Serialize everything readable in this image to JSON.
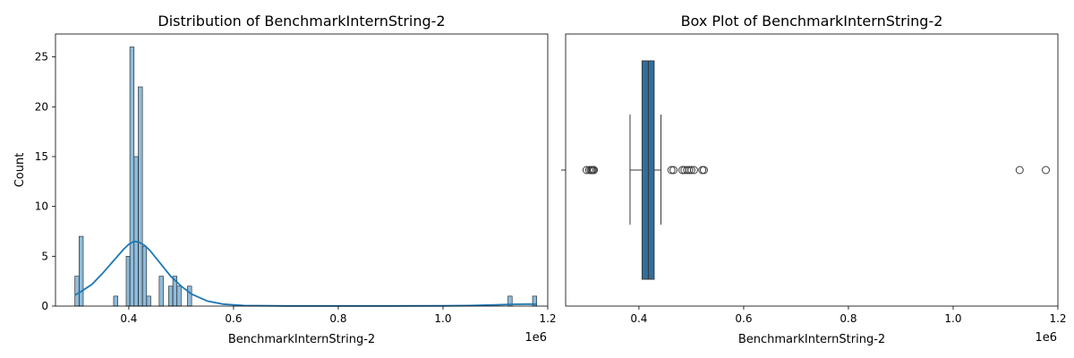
{
  "chart_data": [
    {
      "type": "bar",
      "subtype": "histogram-with-kde",
      "title": "Distribution of BenchmarkInternString-2",
      "xlabel": "BenchmarkInternString-2",
      "ylabel": "Count",
      "x_offset_label": "1e6",
      "xlim": [
        0.26,
        1.2
      ],
      "ylim": [
        0,
        27.3
      ],
      "xticks": [
        0.4,
        0.6,
        0.8,
        1.0,
        1.2
      ],
      "xtick_labels": [
        "0.4",
        "0.6",
        "0.8",
        "1.0",
        "1.2"
      ],
      "yticks": [
        0,
        5,
        10,
        15,
        20,
        25
      ],
      "ytick_labels": [
        "0",
        "5",
        "10",
        "15",
        "20",
        "25"
      ],
      "bar_color": "#1f77b4",
      "bins": [
        {
          "x0": 0.297,
          "x1": 0.305,
          "count": 3
        },
        {
          "x0": 0.305,
          "x1": 0.313,
          "count": 7
        },
        {
          "x0": 0.371,
          "x1": 0.379,
          "count": 1
        },
        {
          "x0": 0.395,
          "x1": 0.402,
          "count": 5
        },
        {
          "x0": 0.402,
          "x1": 0.41,
          "count": 26
        },
        {
          "x0": 0.41,
          "x1": 0.418,
          "count": 15
        },
        {
          "x0": 0.418,
          "x1": 0.426,
          "count": 22
        },
        {
          "x0": 0.426,
          "x1": 0.434,
          "count": 6
        },
        {
          "x0": 0.434,
          "x1": 0.442,
          "count": 1
        },
        {
          "x0": 0.458,
          "x1": 0.466,
          "count": 3
        },
        {
          "x0": 0.476,
          "x1": 0.484,
          "count": 2
        },
        {
          "x0": 0.484,
          "x1": 0.492,
          "count": 3
        },
        {
          "x0": 0.492,
          "x1": 0.5,
          "count": 2
        },
        {
          "x0": 0.512,
          "x1": 0.52,
          "count": 2
        },
        {
          "x0": 1.124,
          "x1": 1.132,
          "count": 1
        },
        {
          "x0": 1.171,
          "x1": 1.179,
          "count": 1
        }
      ],
      "kde": {
        "x": [
          0.297,
          0.31,
          0.33,
          0.35,
          0.37,
          0.39,
          0.4,
          0.41,
          0.42,
          0.43,
          0.44,
          0.46,
          0.48,
          0.5,
          0.52,
          0.55,
          0.58,
          0.62,
          0.7,
          0.8,
          0.9,
          1.0,
          1.05,
          1.1,
          1.13,
          1.16,
          1.179
        ],
        "y": [
          1.1,
          1.5,
          2.2,
          3.3,
          4.5,
          5.7,
          6.2,
          6.5,
          6.4,
          6.1,
          5.6,
          4.3,
          3.0,
          2.0,
          1.2,
          0.5,
          0.2,
          0.05,
          0.02,
          0.02,
          0.02,
          0.03,
          0.05,
          0.12,
          0.18,
          0.2,
          0.2
        ]
      }
    },
    {
      "type": "box",
      "title": "Box Plot of BenchmarkInternString-2",
      "xlabel": "BenchmarkInternString-2",
      "x_offset_label": "1e6",
      "xlim": [
        0.26,
        1.2
      ],
      "xticks": [
        0.4,
        0.6,
        0.8,
        1.0,
        1.2
      ],
      "xtick_labels": [
        "0.4",
        "0.6",
        "0.8",
        "1.0",
        "1.2"
      ],
      "box_color": "#2e6f9e",
      "whisker_low": 0.383,
      "q1": 0.406,
      "median": 0.418,
      "q3": 0.429,
      "whisker_high": 0.442,
      "outliers": [
        0.3,
        0.305,
        0.308,
        0.31,
        0.312,
        0.314,
        0.462,
        0.466,
        0.483,
        0.487,
        0.492,
        0.496,
        0.5,
        0.505,
        0.521,
        0.524,
        1.127,
        1.177
      ]
    }
  ]
}
